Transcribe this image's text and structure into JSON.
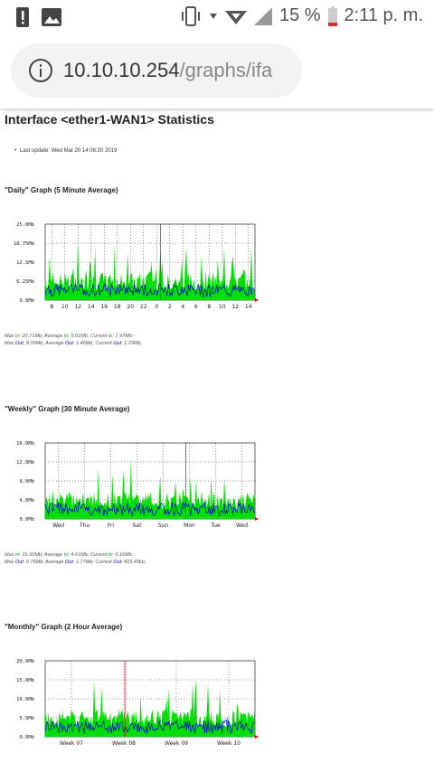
{
  "statusbar": {
    "battery": "15 %",
    "time": "2:11 p. m."
  },
  "browser": {
    "url_host": "10.10.10.254",
    "url_path": "/graphs/ifa"
  },
  "page": {
    "title": "Interface <ether1-WAN1> Statistics",
    "last_update": "Last update: Wed Mar 20 14:06:20 2019",
    "graphs": [
      {
        "title": "\"Daily\" Graph (5 Minute Average)",
        "yticks": [
          "25.0Mb",
          "18.75Mb",
          "12.5Mb",
          "6.25Mb",
          "0.0Mb"
        ],
        "xticks": [
          "8",
          "10",
          "12",
          "14",
          "16",
          "18",
          "20",
          "22",
          "0",
          "2",
          "4",
          "6",
          "8",
          "10",
          "12",
          "14"
        ],
        "max_in": "20.71Mb",
        "avg_in": "5.01Mb",
        "cur_in": "7.97Mb",
        "max_out": "8.09Mb",
        "avg_out": "1.40Mb",
        "cur_out": "1.29Mb"
      },
      {
        "title": "\"Weekly\" Graph (30 Minute Average)",
        "yticks": [
          "16.0Mb",
          "12.0Mb",
          "8.0Mb",
          "4.0Mb",
          "0.0Mb"
        ],
        "xticks": [
          "Wed",
          "Thu",
          "Fri",
          "Sat",
          "Sun",
          "Mon",
          "Tue",
          "Wed"
        ],
        "max_in": "15.50Mb",
        "avg_in": "4.61Mb",
        "cur_in": "6.16Mb",
        "max_out": "9.79Mb",
        "avg_out": "1.77Mb",
        "cur_out": "823.43kb"
      },
      {
        "title": "\"Monthly\" Graph (2 Hour Average)",
        "yticks": [
          "20.0Mb",
          "15.0Mb",
          "10.0Mb",
          "5.0Mb",
          "0.0Mb"
        ],
        "xticks": [
          "Week 07",
          "Week 08",
          "Week 09",
          "Week 10"
        ]
      }
    ]
  }
}
